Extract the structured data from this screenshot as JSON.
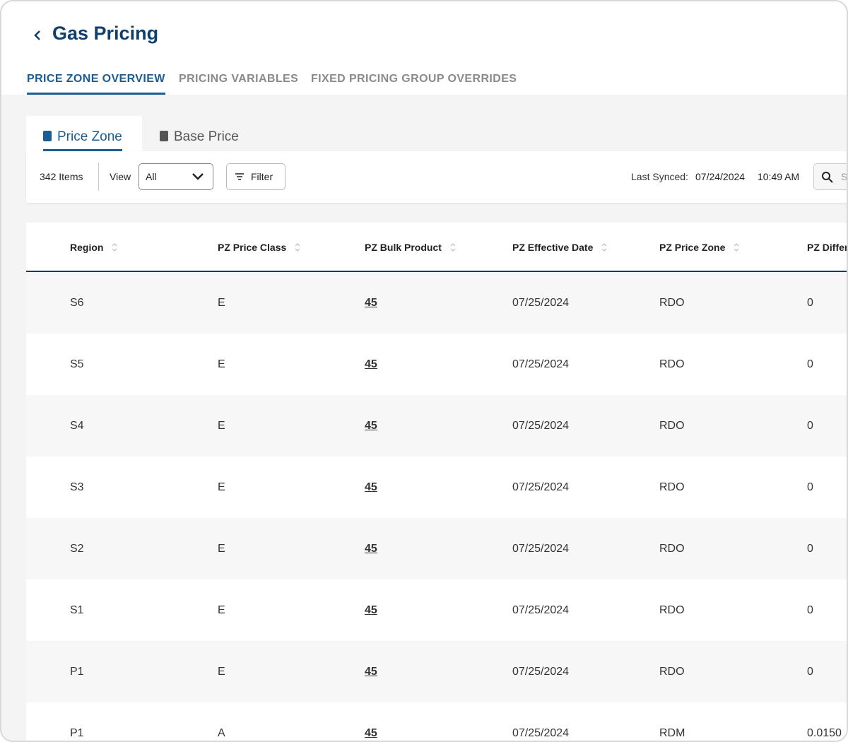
{
  "header": {
    "title": "Gas Pricing",
    "tabs": [
      "PRICE ZONE OVERVIEW",
      "PRICING VARIABLES",
      "FIXED PRICING GROUP OVERRIDES"
    ]
  },
  "subtabs": [
    "Price Zone",
    "Base Price"
  ],
  "toolbar": {
    "items": "342 Items",
    "view_label": "View",
    "view_value": "All",
    "filter": "Filter",
    "last_synced_label": "Last Synced:",
    "last_synced_date": "07/24/2024",
    "last_synced_time": "10:49 AM",
    "search": "Search"
  },
  "table": {
    "columns": [
      "Region",
      "PZ Price Class",
      "PZ Bulk Product",
      "PZ Effective Date",
      "PZ Price Zone",
      "PZ Differential"
    ],
    "rows": [
      [
        "S6",
        "E",
        "45",
        "07/25/2024",
        "RDO",
        "0"
      ],
      [
        "S5",
        "E",
        "45",
        "07/25/2024",
        "RDO",
        "0"
      ],
      [
        "S4",
        "E",
        "45",
        "07/25/2024",
        "RDO",
        "0"
      ],
      [
        "S3",
        "E",
        "45",
        "07/25/2024",
        "RDO",
        "0"
      ],
      [
        "S2",
        "E",
        "45",
        "07/25/2024",
        "RDO",
        "0"
      ],
      [
        "S1",
        "E",
        "45",
        "07/25/2024",
        "RDO",
        "0"
      ],
      [
        "P1",
        "E",
        "45",
        "07/25/2024",
        "RDO",
        "0"
      ],
      [
        "P1",
        "A",
        "45",
        "07/25/2024",
        "RDM",
        "0.0150"
      ]
    ]
  }
}
